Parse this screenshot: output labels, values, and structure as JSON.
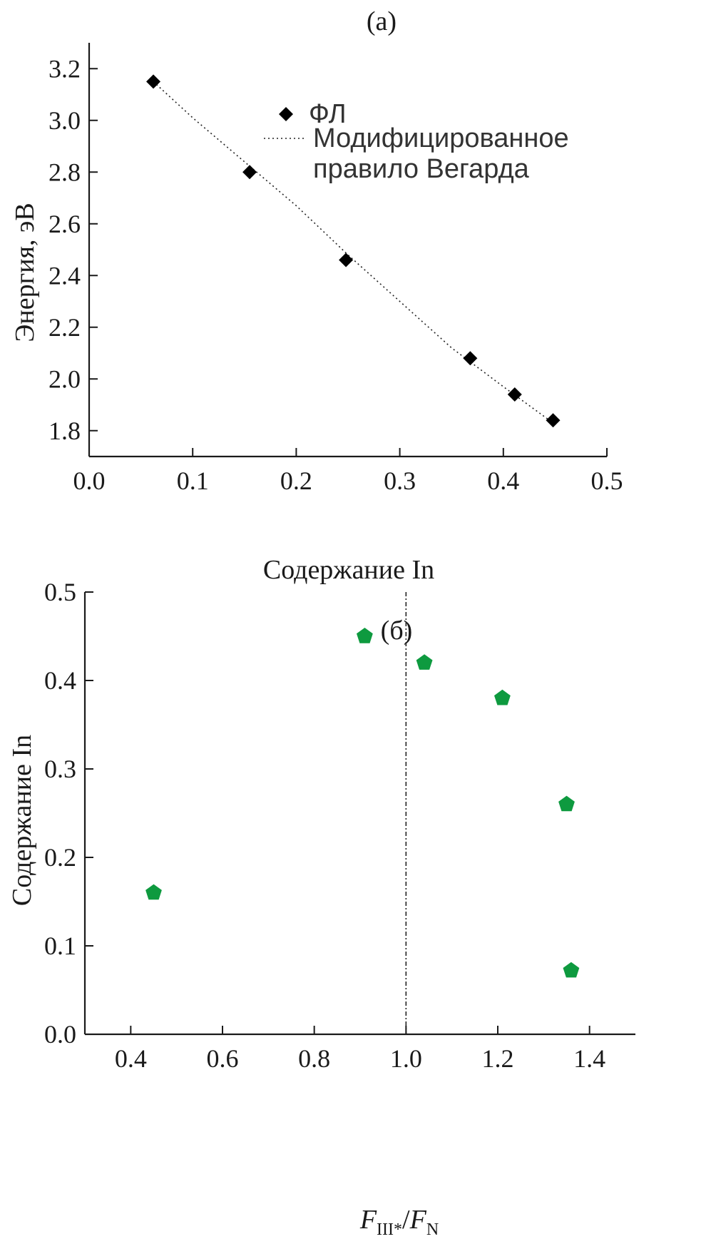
{
  "chart_data": [
    {
      "panel": "(a)",
      "type": "scatter",
      "xlabel": "Содержание In",
      "ylabel": "Энергия, эВ",
      "xlim": [
        0.0,
        0.5
      ],
      "ylim": [
        1.7,
        3.3
      ],
      "xticks": [
        0.0,
        0.1,
        0.2,
        0.3,
        0.4,
        0.5
      ],
      "xtick_labels": [
        "0.0",
        "0.1",
        "0.2",
        "0.3",
        "0.4",
        "0.5"
      ],
      "yticks": [
        1.8,
        2.0,
        2.2,
        2.4,
        2.6,
        2.8,
        3.0,
        3.2
      ],
      "ytick_labels": [
        "1.8",
        "2.0",
        "2.2",
        "2.4",
        "2.6",
        "2.8",
        "3.0",
        "3.2"
      ],
      "legend_position": "top-right",
      "grid": false,
      "series": [
        {
          "name": "ФЛ",
          "marker": "diamond",
          "color": "#000000",
          "x": [
            0.062,
            0.155,
            0.248,
            0.368,
            0.411,
            0.448
          ],
          "y": [
            3.15,
            2.8,
            2.46,
            2.08,
            1.94,
            1.84
          ]
        },
        {
          "name": "Модифицированное правило Вегарда",
          "type": "line",
          "style": "dotted",
          "color": "#222222",
          "x": [
            0.062,
            0.1,
            0.15,
            0.2,
            0.25,
            0.3,
            0.35,
            0.4,
            0.448
          ],
          "y": [
            3.15,
            3.01,
            2.84,
            2.67,
            2.48,
            2.3,
            2.12,
            1.97,
            1.83
          ]
        }
      ]
    },
    {
      "panel": "(б)",
      "type": "scatter",
      "xlabel_parts": [
        "F",
        "III*",
        "/",
        "F",
        "N"
      ],
      "ylabel": "Содержание In",
      "xlim": [
        0.3,
        1.5
      ],
      "ylim": [
        0.0,
        0.5
      ],
      "xticks": [
        0.4,
        0.6,
        0.8,
        1.0,
        1.2,
        1.4
      ],
      "xtick_labels": [
        "0.4",
        "0.6",
        "0.8",
        "1.0",
        "1.2",
        "1.4"
      ],
      "yticks": [
        0.0,
        0.1,
        0.2,
        0.3,
        0.4,
        0.5
      ],
      "ytick_labels": [
        "0.0",
        "0.1",
        "0.2",
        "0.3",
        "0.4",
        "0.5"
      ],
      "reference_line_x": 1.0,
      "grid": false,
      "series": [
        {
          "marker": "pentagon",
          "color": "#0e9a3f",
          "x": [
            0.45,
            0.91,
            1.04,
            1.21,
            1.35,
            1.36
          ],
          "y": [
            0.16,
            0.45,
            0.42,
            0.38,
            0.26,
            0.072
          ]
        }
      ]
    }
  ]
}
